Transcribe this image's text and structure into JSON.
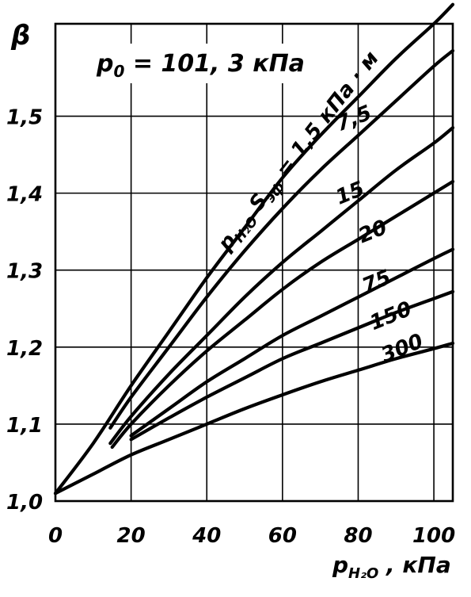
{
  "chart_data": {
    "type": "line",
    "ylabel": "β",
    "xlabel_main": "p",
    "xlabel_sub": "H₂O",
    "xlabel_unit": " , кПа",
    "condition_main": "p",
    "condition_sub": "0",
    "condition_rest": " = 101, 3  кПа",
    "series_label_main": "p",
    "series_label_sub1": "H₂O",
    "series_label_mid": " S",
    "series_label_sub2": "эф",
    "series_label_rest": " = 1,5 кПа · м",
    "xlim": [
      0,
      105
    ],
    "ylim": [
      1.0,
      1.62
    ],
    "x_ticks": [
      {
        "v": 0,
        "label": "0"
      },
      {
        "v": 20,
        "label": "20"
      },
      {
        "v": 40,
        "label": "40"
      },
      {
        "v": 60,
        "label": "60"
      },
      {
        "v": 80,
        "label": "80"
      },
      {
        "v": 100,
        "label": "100"
      }
    ],
    "y_ticks": [
      {
        "v": 1.0,
        "label": "1,0"
      },
      {
        "v": 1.1,
        "label": "1,1"
      },
      {
        "v": 1.2,
        "label": "1,2"
      },
      {
        "v": 1.3,
        "label": "1,3"
      },
      {
        "v": 1.4,
        "label": "1,4"
      },
      {
        "v": 1.5,
        "label": "1,5"
      }
    ],
    "series": [
      {
        "name": "1,5",
        "points": [
          [
            0,
            1.01
          ],
          [
            10,
            1.075
          ],
          [
            20,
            1.15
          ],
          [
            30,
            1.22
          ],
          [
            40,
            1.29
          ],
          [
            50,
            1.355
          ],
          [
            60,
            1.42
          ],
          [
            70,
            1.475
          ],
          [
            80,
            1.525
          ],
          [
            90,
            1.575
          ],
          [
            100,
            1.62
          ],
          [
            105,
            1.645
          ]
        ]
      },
      {
        "name": "7,5",
        "points": [
          [
            14.5,
            1.095
          ],
          [
            20,
            1.135
          ],
          [
            30,
            1.2
          ],
          [
            40,
            1.265
          ],
          [
            50,
            1.325
          ],
          [
            60,
            1.38
          ],
          [
            70,
            1.43
          ],
          [
            80,
            1.475
          ],
          [
            90,
            1.52
          ],
          [
            100,
            1.565
          ],
          [
            105,
            1.585
          ]
        ]
      },
      {
        "name": "15",
        "points": [
          [
            14.5,
            1.075
          ],
          [
            20,
            1.11
          ],
          [
            30,
            1.165
          ],
          [
            40,
            1.215
          ],
          [
            50,
            1.265
          ],
          [
            60,
            1.31
          ],
          [
            70,
            1.35
          ],
          [
            80,
            1.39
          ],
          [
            90,
            1.43
          ],
          [
            100,
            1.465
          ],
          [
            105,
            1.485
          ]
        ]
      },
      {
        "name": "20",
        "points": [
          [
            15,
            1.07
          ],
          [
            20,
            1.1
          ],
          [
            30,
            1.15
          ],
          [
            40,
            1.195
          ],
          [
            50,
            1.235
          ],
          [
            60,
            1.275
          ],
          [
            70,
            1.31
          ],
          [
            80,
            1.34
          ],
          [
            90,
            1.37
          ],
          [
            100,
            1.4
          ],
          [
            105,
            1.415
          ]
        ]
      },
      {
        "name": "75",
        "points": [
          [
            20,
            1.085
          ],
          [
            30,
            1.12
          ],
          [
            40,
            1.155
          ],
          [
            50,
            1.185
          ],
          [
            60,
            1.215
          ],
          [
            70,
            1.24
          ],
          [
            80,
            1.265
          ],
          [
            90,
            1.29
          ],
          [
            100,
            1.315
          ],
          [
            105,
            1.327
          ]
        ]
      },
      {
        "name": "150",
        "points": [
          [
            20,
            1.08
          ],
          [
            30,
            1.108
          ],
          [
            40,
            1.135
          ],
          [
            50,
            1.16
          ],
          [
            60,
            1.185
          ],
          [
            70,
            1.205
          ],
          [
            80,
            1.225
          ],
          [
            90,
            1.245
          ],
          [
            100,
            1.263
          ],
          [
            105,
            1.272
          ]
        ]
      },
      {
        "name": "300",
        "points": [
          [
            0,
            1.01
          ],
          [
            10,
            1.035
          ],
          [
            20,
            1.06
          ],
          [
            30,
            1.08
          ],
          [
            40,
            1.1
          ],
          [
            50,
            1.12
          ],
          [
            60,
            1.138
          ],
          [
            70,
            1.155
          ],
          [
            80,
            1.17
          ],
          [
            90,
            1.185
          ],
          [
            100,
            1.198
          ],
          [
            105,
            1.205
          ]
        ]
      }
    ],
    "series_labels": [
      {
        "series": "7,5",
        "at": [
          75,
          1.48
        ]
      },
      {
        "series": "15",
        "at": [
          75,
          1.385
        ]
      },
      {
        "series": "20",
        "at": [
          81,
          1.335
        ]
      },
      {
        "series": "75",
        "at": [
          82,
          1.27
        ]
      },
      {
        "series": "150",
        "at": [
          84,
          1.222
        ]
      },
      {
        "series": "300",
        "at": [
          87,
          1.18
        ]
      }
    ]
  }
}
